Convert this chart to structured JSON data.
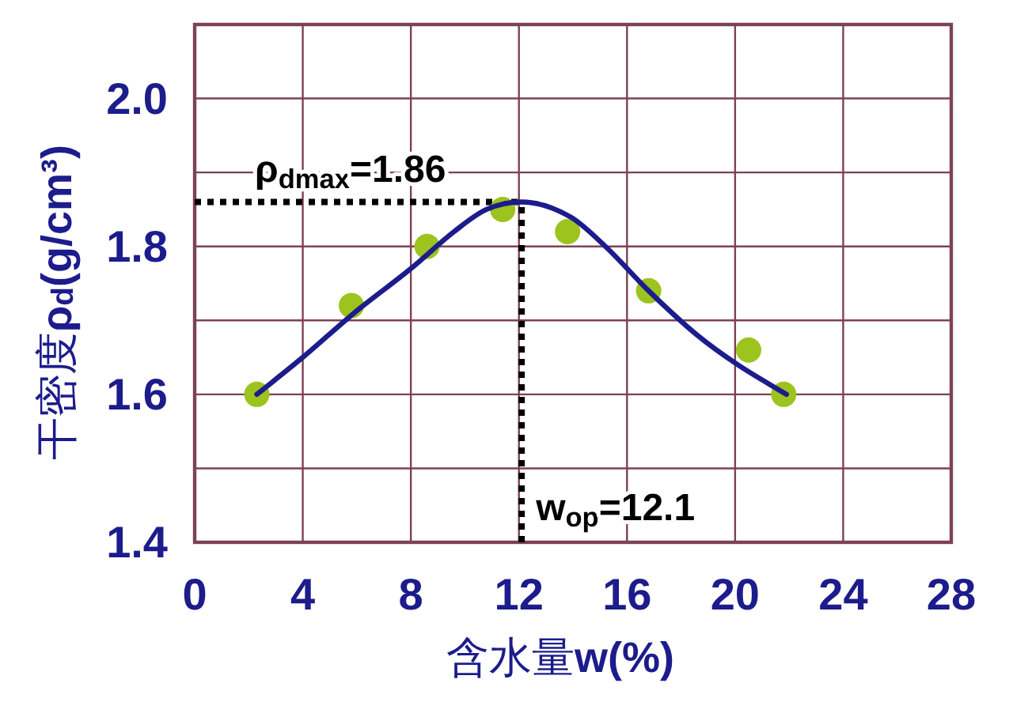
{
  "chart_data": {
    "type": "scatter",
    "xlabel": "含水量w(%)",
    "ylabel": "干密度ρ$_{d}$(g/cm³)",
    "xlim": [
      0,
      28
    ],
    "xticks": [
      0,
      4,
      8,
      12,
      16,
      20,
      24,
      28
    ],
    "ylim": [
      1.4,
      2.1
    ],
    "yticks": [
      1.4,
      {
        "value": 1.5,
        "label": null
      },
      1.6,
      {
        "value": 1.7,
        "label": null
      },
      1.8,
      {
        "value": 1.9,
        "label": null
      },
      {
        "value": 2.0,
        "label": "2.0"
      },
      {
        "value": 2.1,
        "label": null
      }
    ],
    "grid": true,
    "series": [
      {
        "color": "#9cc31e",
        "marker": "circle",
        "x": [
          2.3,
          5.8,
          8.6,
          11.4,
          13.8,
          16.8,
          20.5,
          21.8
        ],
        "values": [
          1.6,
          1.72,
          1.8,
          1.85,
          1.82,
          1.74,
          1.66,
          1.6
        ]
      },
      {
        "type": "line",
        "color": "#1c1c8c",
        "marker": "none",
        "line_style": "solid",
        "x": [
          2.3,
          4.0,
          5.9,
          8.0,
          9.6,
          10.8,
          12.1,
          13.9,
          15.2,
          16.8,
          18.6,
          20.1,
          21.9
        ],
        "values": [
          1.6,
          1.65,
          1.71,
          1.77,
          1.82,
          1.85,
          1.86,
          1.84,
          1.8,
          1.74,
          1.68,
          1.64,
          1.6
        ]
      }
    ],
    "ref_lines": [
      {
        "axis": "y",
        "value": 1.86,
        "label": "ρ$_{dmax}$=1.86",
        "color": "#000000",
        "line_style": "dotted"
      },
      {
        "axis": "x",
        "value": 12.1,
        "label": "w$_{op}$=12.1",
        "color": "#000000",
        "line_style": "dotted"
      }
    ]
  }
}
